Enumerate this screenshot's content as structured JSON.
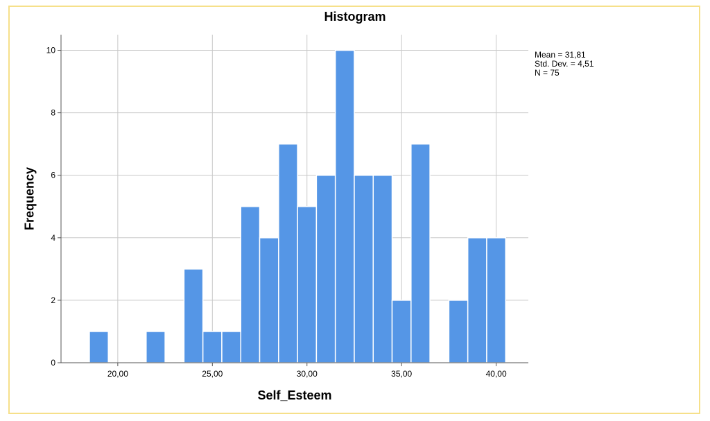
{
  "chart_data": {
    "type": "bar",
    "title": "Histogram",
    "xlabel": "Self_Esteem",
    "ylabel": "Frequency",
    "xlim": [
      17,
      41.7
    ],
    "ylim": [
      0,
      10.5
    ],
    "x_ticks": [
      20,
      25,
      30,
      35,
      40
    ],
    "x_tick_labels": [
      "20,00",
      "25,00",
      "30,00",
      "35,00",
      "40,00"
    ],
    "y_ticks": [
      0,
      2,
      4,
      6,
      8,
      10
    ],
    "y_tick_labels": [
      "0",
      "2",
      "4",
      "6",
      "8",
      "10"
    ],
    "bin_width": 1,
    "bins": [
      {
        "x": 19,
        "count": 1
      },
      {
        "x": 22,
        "count": 1
      },
      {
        "x": 24,
        "count": 3
      },
      {
        "x": 25,
        "count": 1
      },
      {
        "x": 26,
        "count": 1
      },
      {
        "x": 27,
        "count": 5
      },
      {
        "x": 28,
        "count": 4
      },
      {
        "x": 29,
        "count": 7
      },
      {
        "x": 30,
        "count": 5
      },
      {
        "x": 31,
        "count": 6
      },
      {
        "x": 32,
        "count": 10
      },
      {
        "x": 33,
        "count": 6
      },
      {
        "x": 34,
        "count": 6
      },
      {
        "x": 35,
        "count": 2
      },
      {
        "x": 36,
        "count": 7
      },
      {
        "x": 38,
        "count": 2
      },
      {
        "x": 39,
        "count": 4
      },
      {
        "x": 40,
        "count": 4
      }
    ],
    "grid": true,
    "bar_color": "#5596e6",
    "stats": [
      "Mean = 31,81",
      "Std. Dev. = 4,51",
      "N = 75"
    ]
  }
}
